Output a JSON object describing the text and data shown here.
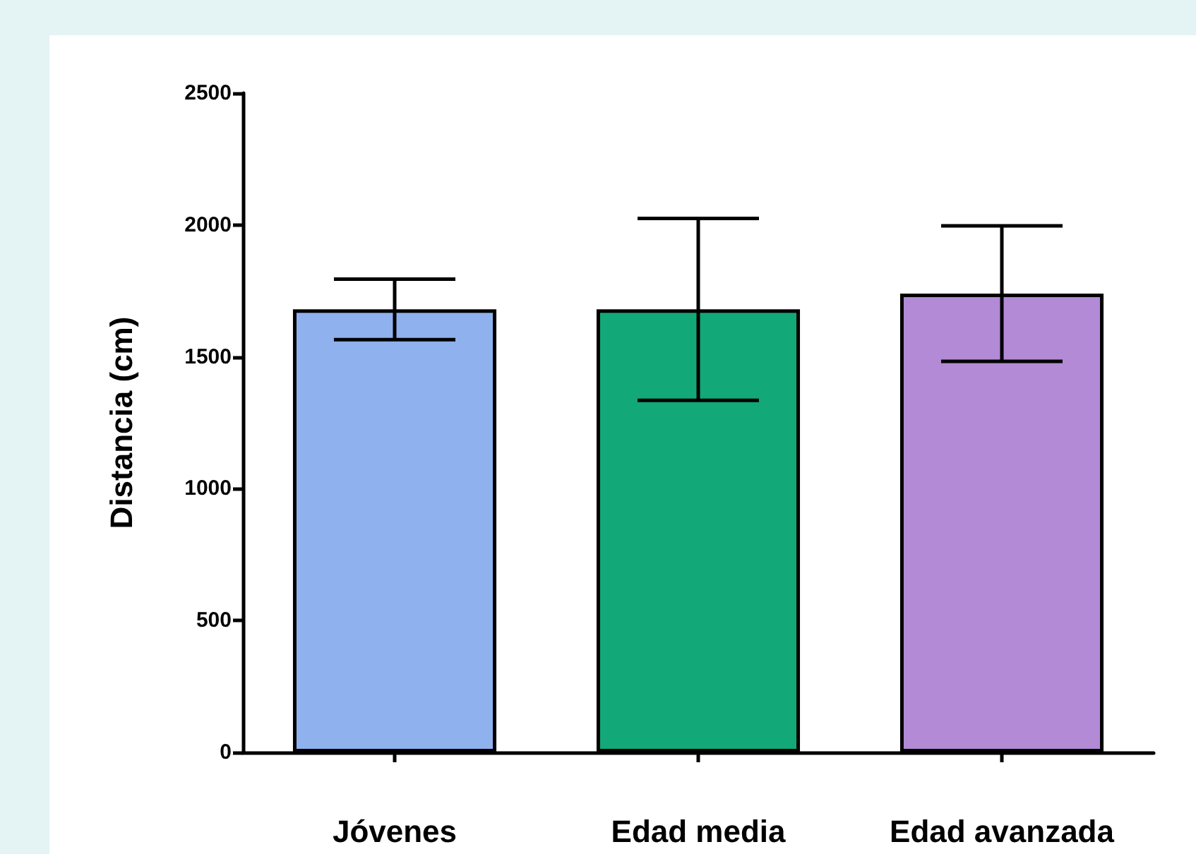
{
  "chart_data": {
    "type": "bar",
    "ylabel": "Distancia (cm)",
    "categories": [
      "Jóvenes",
      "Edad media",
      "Edad avanzada"
    ],
    "values": [
      1680,
      1680,
      1740
    ],
    "colors": [
      "#8fb1ee",
      "#12a878",
      "#b28ad6"
    ],
    "errors": [
      115,
      345,
      257
    ],
    "ylim": [
      0,
      2500
    ],
    "yticks": [
      0,
      500,
      1000,
      1500,
      2000,
      2500
    ]
  }
}
